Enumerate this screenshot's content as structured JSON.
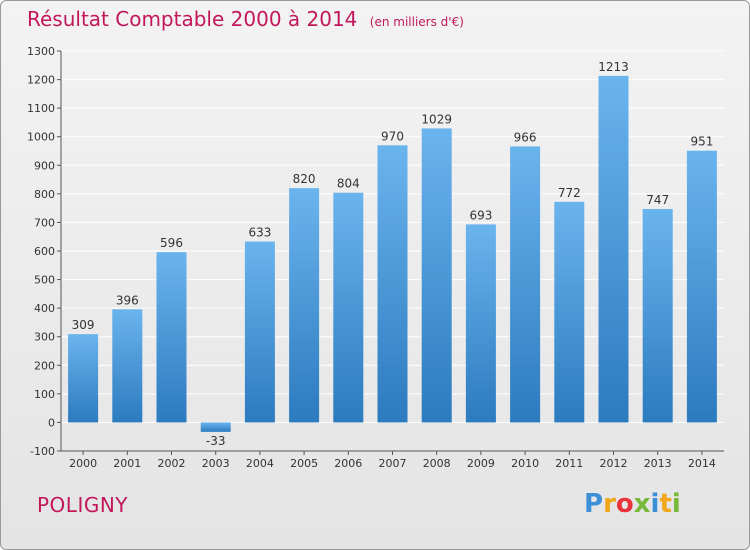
{
  "header": {
    "title": "Résultat Comptable 2000 à 2014",
    "subtitle": "(en milliers d'€)"
  },
  "footer": {
    "commune": "POLIGNY",
    "logo": {
      "letters": [
        "P",
        "r",
        "o",
        "x",
        "i",
        "t",
        "i"
      ],
      "colors": [
        "#3b8fd6",
        "#f2a619",
        "#e8343a",
        "#79b93a",
        "#3b8fd6",
        "#f2a619",
        "#79b93a"
      ]
    }
  },
  "chart_data": {
    "type": "bar",
    "categories": [
      "2000",
      "2001",
      "2002",
      "2003",
      "2004",
      "2005",
      "2006",
      "2007",
      "2008",
      "2009",
      "2010",
      "2011",
      "2012",
      "2013",
      "2014"
    ],
    "values": [
      309,
      396,
      596,
      -33,
      633,
      820,
      804,
      970,
      1029,
      693,
      966,
      772,
      1213,
      747,
      951
    ],
    "yticks": [
      -100,
      0,
      100,
      200,
      300,
      400,
      500,
      600,
      700,
      800,
      900,
      1000,
      1100,
      1200,
      1300
    ],
    "ylim": [
      -100,
      1300
    ],
    "grid": true,
    "colors": {
      "bar_light": "#6ab4ee",
      "bar_dark": "#2c7bbf",
      "grid": "#ffffff",
      "text": "#333333"
    }
  }
}
